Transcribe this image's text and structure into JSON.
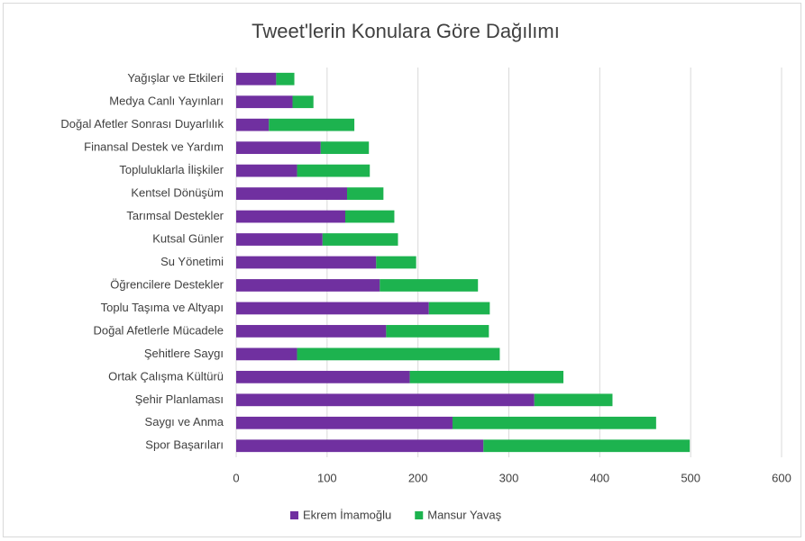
{
  "chart_data": {
    "type": "stacked-barh",
    "title": "Tweet'lerin Konulara Göre Dağılımı",
    "categories": [
      "Yağışlar ve Etkileri",
      "Medya Canlı Yayınları",
      "Doğal Afetler Sonrası Duyarlılık",
      "Finansal Destek ve Yardım",
      "Topluluklarla İlişkiler",
      "Kentsel Dönüşüm",
      "Tarımsal Destekler",
      "Kutsal Günler",
      "Su Yönetimi",
      "Öğrencilere Destekler",
      "Toplu Taşıma ve Altyapı",
      "Doğal Afetlerle Mücadele",
      "Şehitlere Saygı",
      "Ortak Çalışma Kültürü",
      "Şehir Planlaması",
      "Saygı ve Anma",
      "Spor Başarıları"
    ],
    "series": [
      {
        "name": "Ekrem İmamoğlu",
        "color": "#7030a0",
        "values": [
          44,
          62,
          36,
          93,
          67,
          122,
          120,
          95,
          154,
          158,
          212,
          165,
          67,
          191,
          328,
          238,
          272
        ]
      },
      {
        "name": "Mansur Yavaş",
        "color": "#1db34f",
        "values": [
          20,
          23,
          94,
          53,
          80,
          40,
          54,
          83,
          44,
          108,
          67,
          113,
          223,
          169,
          86,
          224,
          227
        ]
      }
    ],
    "xlim": [
      0,
      600
    ],
    "xticks": [
      0,
      100,
      200,
      300,
      400,
      500,
      600
    ],
    "grid": true,
    "legend": "bottom"
  }
}
